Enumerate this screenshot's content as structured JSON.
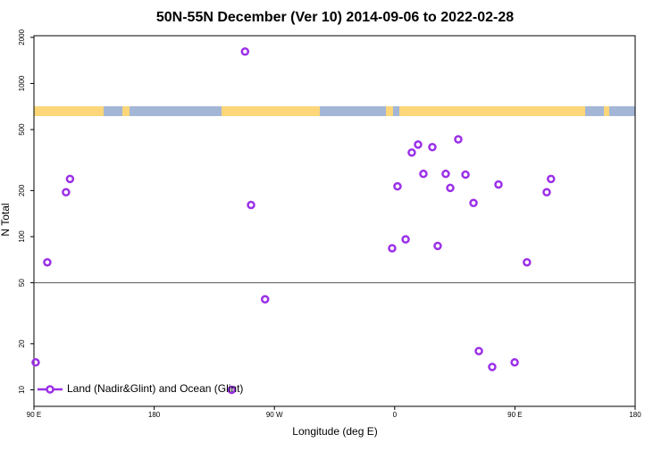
{
  "chart_data": {
    "type": "scatter",
    "title": "50N-55N December (Ver 10)   2014-09-06 to 2022-02-28",
    "x_label": "Longitude (deg E)",
    "y_label": "N Total",
    "log_y": true,
    "grid": false,
    "legend_loc": "lower left",
    "reference_line": 50,
    "xlim": [
      -270,
      180
    ],
    "ylim": [
      7.8,
      2050
    ],
    "xticks": [
      {
        "value": -270,
        "label": "90 E"
      },
      {
        "value": -180,
        "label": "180"
      },
      {
        "value": -90,
        "label": "90 W"
      },
      0,
      {
        "value": 90,
        "label": "90 E"
      },
      180
    ],
    "yticks": [
      10,
      20,
      50,
      100,
      200,
      500,
      1000,
      2000
    ],
    "series": [
      {
        "name": "Land (Nadir&Glint) and Ocean (Glint)",
        "color": "#9b30e8",
        "x": [
          -268.7,
          -260,
          -246,
          -243,
          -112,
          -122,
          -107.5,
          -97,
          -1.9,
          2.1,
          8.2,
          12.8,
          17.5,
          21.5,
          28.2,
          32.2,
          38.2,
          41.6,
          47.6,
          53,
          59,
          63,
          73,
          77.7,
          89.8,
          99,
          113.8,
          117
        ],
        "values": [
          15.1,
          68,
          195,
          238,
          1615,
          10,
          161,
          39,
          84,
          213,
          96,
          354,
          399,
          257,
          384,
          87,
          257,
          208,
          432,
          254,
          166,
          17.9,
          14.1,
          219,
          15.1,
          68,
          195,
          238
        ]
      }
    ]
  }
}
